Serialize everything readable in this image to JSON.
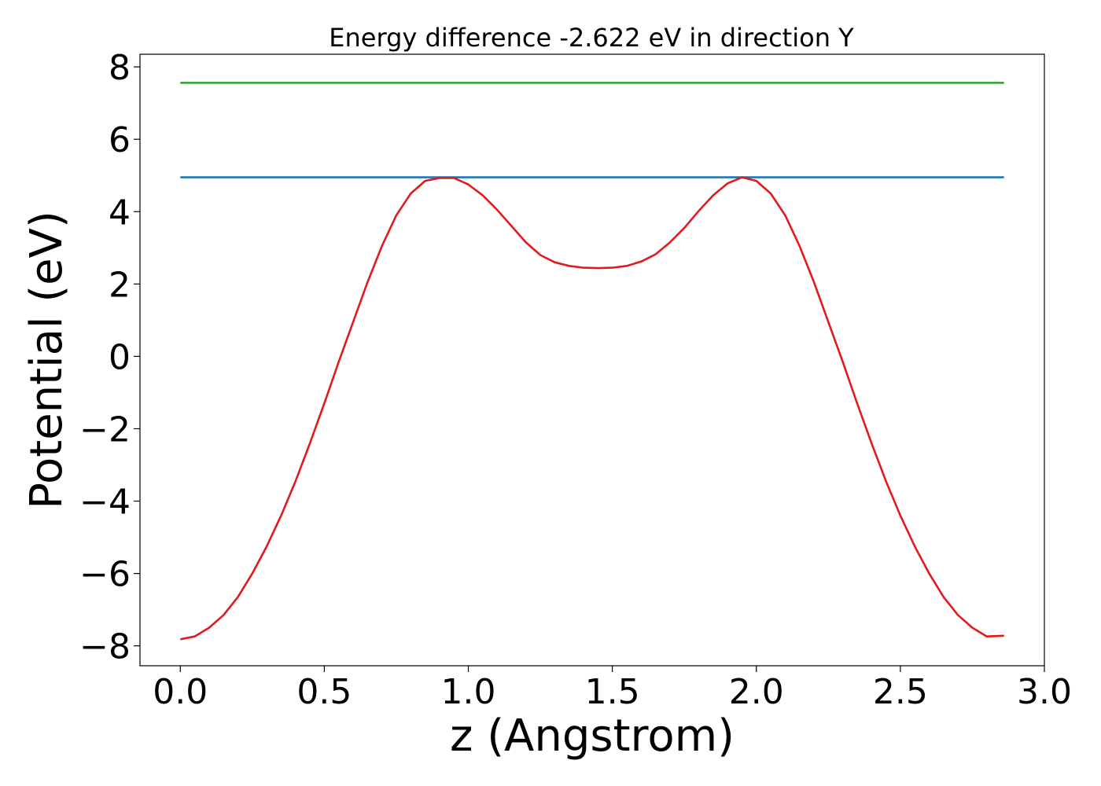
{
  "chart_data": {
    "type": "line",
    "title": "Energy difference -2.622 eV in direction Y",
    "xlabel": "z (Angstrom)",
    "ylabel": "Potential (eV)",
    "xlim": [
      -0.14,
      3.0
    ],
    "ylim": [
      -8.55,
      8.35
    ],
    "xticks": [
      0.0,
      0.5,
      1.0,
      1.5,
      2.0,
      2.5,
      3.0
    ],
    "xtick_labels": [
      "0.0",
      "0.5",
      "1.0",
      "1.5",
      "2.0",
      "2.5",
      "3.0"
    ],
    "yticks": [
      -8,
      -6,
      -4,
      -2,
      0,
      2,
      4,
      6,
      8
    ],
    "ytick_labels": [
      "−8",
      "−6",
      "−4",
      "−2",
      "0",
      "2",
      "4",
      "6",
      "8"
    ],
    "grid": false,
    "series": [
      {
        "color": "#2ca02c",
        "x": [
          0.0,
          2.86
        ],
        "y": [
          7.56,
          7.56
        ]
      },
      {
        "color": "#1f77b4",
        "x": [
          0.0,
          2.86
        ],
        "y": [
          4.95,
          4.95
        ]
      },
      {
        "color": "#e31a1c",
        "x": [
          0.0,
          0.05,
          0.1,
          0.15,
          0.2,
          0.25,
          0.3,
          0.35,
          0.4,
          0.45,
          0.5,
          0.55,
          0.6,
          0.65,
          0.7,
          0.75,
          0.8,
          0.85,
          0.9,
          0.95,
          1.0,
          1.05,
          1.1,
          1.15,
          1.2,
          1.25,
          1.3,
          1.35,
          1.4,
          1.45,
          1.5,
          1.55,
          1.6,
          1.65,
          1.7,
          1.75,
          1.8,
          1.85,
          1.9,
          1.95,
          2.0,
          2.05,
          2.1,
          2.15,
          2.2,
          2.25,
          2.3,
          2.35,
          2.4,
          2.45,
          2.5,
          2.55,
          2.6,
          2.65,
          2.7,
          2.75,
          2.8,
          2.86
        ],
        "y": [
          -7.82,
          -7.74,
          -7.5,
          -7.15,
          -6.65,
          -6.0,
          -5.25,
          -4.4,
          -3.45,
          -2.4,
          -1.3,
          -0.15,
          0.95,
          2.05,
          3.05,
          3.9,
          4.5,
          4.85,
          4.93,
          4.93,
          4.75,
          4.45,
          4.05,
          3.6,
          3.15,
          2.8,
          2.6,
          2.5,
          2.45,
          2.44,
          2.45,
          2.5,
          2.62,
          2.82,
          3.15,
          3.55,
          4.02,
          4.45,
          4.78,
          4.95,
          4.85,
          4.5,
          3.9,
          3.05,
          2.05,
          0.95,
          -0.15,
          -1.3,
          -2.4,
          -3.45,
          -4.4,
          -5.25,
          -6.0,
          -6.65,
          -7.15,
          -7.5,
          -7.74,
          -7.72
        ]
      }
    ]
  }
}
